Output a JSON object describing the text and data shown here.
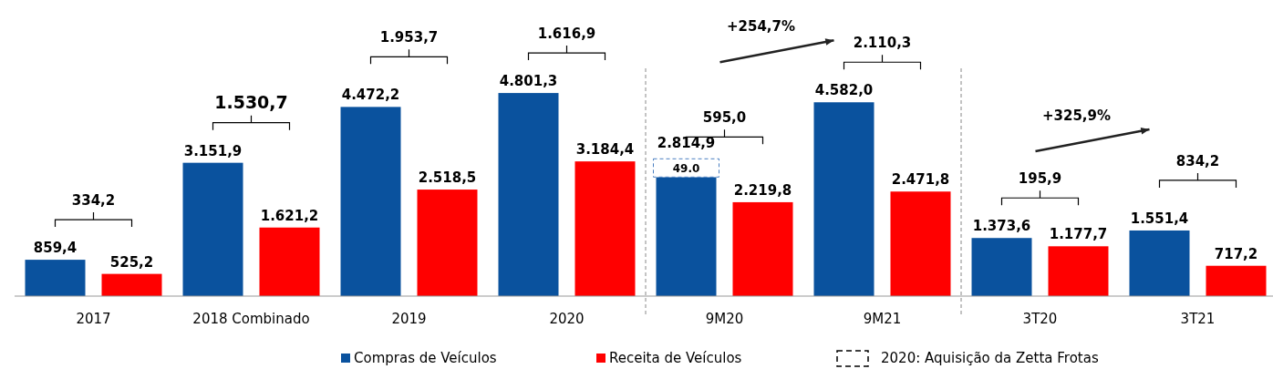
{
  "chart_data": {
    "type": "bar",
    "categories": [
      "2017",
      "2018 Combinado",
      "2019",
      "2020",
      "9M20",
      "9M21",
      "3T20",
      "3T21"
    ],
    "series": [
      {
        "name": "Compras de Veículos",
        "color": "#0a529e",
        "values": [
          859.4,
          3151.9,
          4472.2,
          4801.3,
          2814.9,
          4582.0,
          1373.6,
          1551.4
        ],
        "value_labels": [
          "859,4",
          "3.151,9",
          "4.472,2",
          "4.801,3",
          "2.814,9",
          "4.582,0",
          "1.373,6",
          "1.551,4"
        ]
      },
      {
        "name": "Receita de Veículos",
        "color": "#ff0000",
        "values": [
          525.2,
          1621.2,
          2518.5,
          3184.4,
          2219.8,
          2471.8,
          1177.7,
          717.2
        ],
        "value_labels": [
          "525,2",
          "1.621,2",
          "2.518,5",
          "3.184,4",
          "2.219,8",
          "2.471,8",
          "1.177,7",
          "717,2"
        ]
      }
    ],
    "ylim": [
      0,
      7000
    ],
    "legend": "bottom",
    "annotations": [
      "334,2",
      "1.530,7",
      "1.953,7",
      "1.616,9",
      "595,0",
      "2.110,3",
      "195,9",
      "834,2",
      "+254,7%",
      "+325,9%",
      "49.0",
      "2020: Aquisição da Zetta Frotas"
    ]
  }
}
